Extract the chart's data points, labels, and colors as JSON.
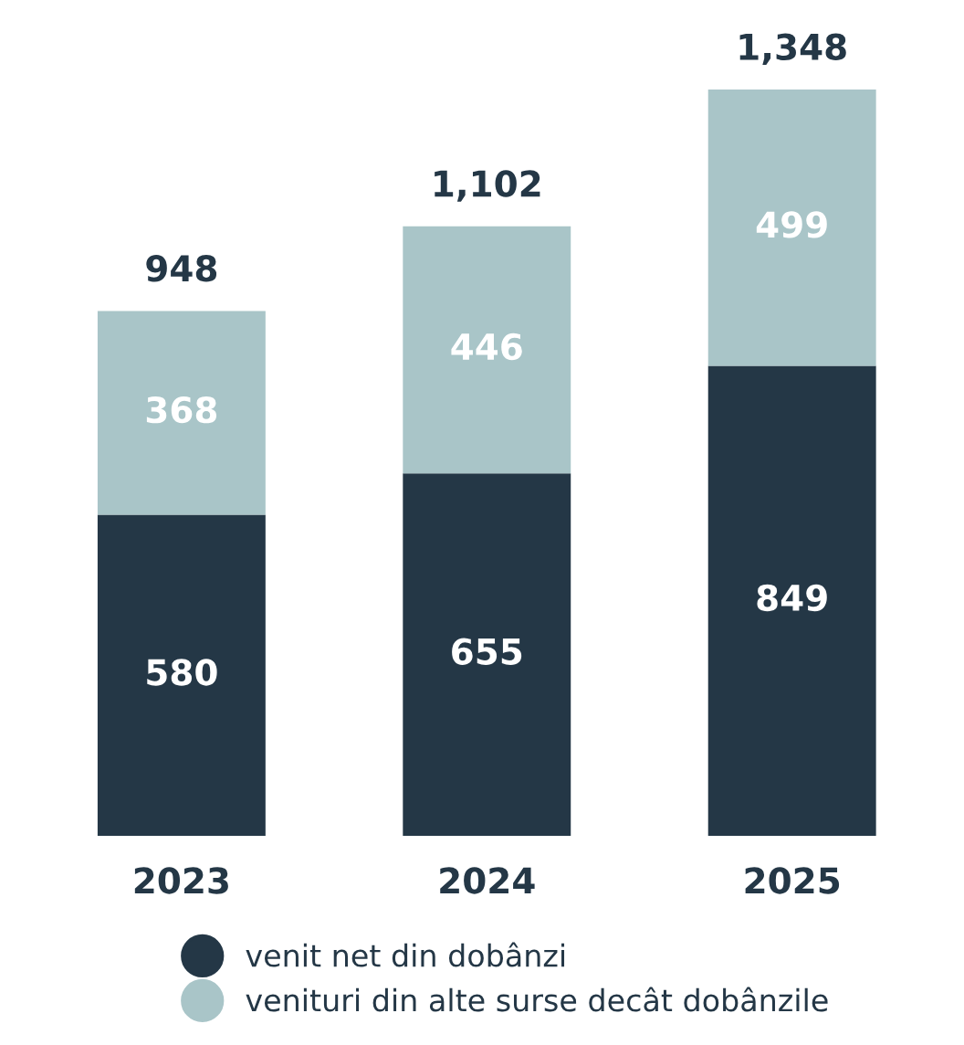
{
  "chart_data": {
    "type": "bar",
    "stacked": true,
    "categories": [
      "2023",
      "2024",
      "2025"
    ],
    "series": [
      {
        "name": "venit net din dobânzi",
        "color": "#243746",
        "values": [
          580,
          655,
          849
        ]
      },
      {
        "name": "venituri din alte surse decât dobânzile",
        "color": "#a9c5c8",
        "values": [
          368,
          446,
          499
        ]
      }
    ],
    "data_labels": true,
    "totals": [
      "948",
      "1,102",
      "1,348"
    ],
    "legend": "bottom",
    "grid": false
  }
}
